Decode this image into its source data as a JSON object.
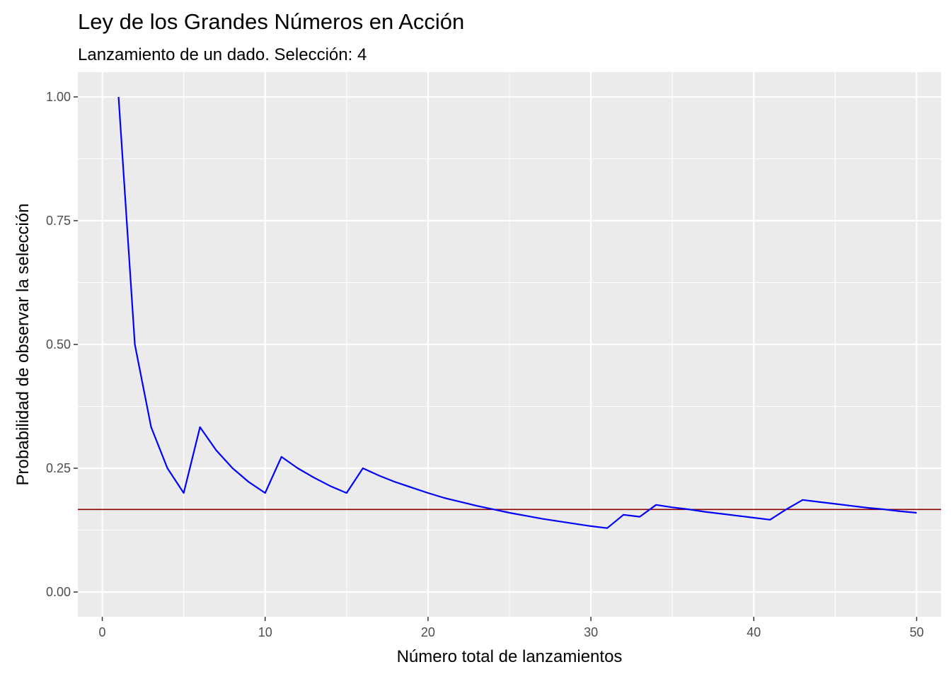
{
  "chart_data": {
    "type": "line",
    "title": "Ley de los Grandes Números en Acción",
    "subtitle": "Lanzamiento de un dado. Selección:  4",
    "xlabel": "Número total de lanzamientos",
    "ylabel": "Probabilidad de observar la selección",
    "xlim": [
      -1.5,
      51.5
    ],
    "ylim": [
      -0.05,
      1.05
    ],
    "x_ticks": [
      0,
      10,
      20,
      30,
      40,
      50
    ],
    "x_tick_labels": [
      "0",
      "10",
      "20",
      "30",
      "40",
      "50"
    ],
    "y_ticks": [
      0,
      0.25,
      0.5,
      0.75,
      1.0
    ],
    "y_tick_labels": [
      "0.00",
      "0.25",
      "0.50",
      "0.75",
      "1.00"
    ],
    "grid": true,
    "series": [
      {
        "color": "#0000ff",
        "x": [
          1,
          2,
          3,
          4,
          5,
          6,
          7,
          8,
          9,
          10,
          11,
          12,
          13,
          14,
          15,
          16,
          17,
          18,
          19,
          20,
          21,
          22,
          23,
          24,
          25,
          26,
          27,
          28,
          29,
          30,
          31,
          32,
          33,
          34,
          35,
          36,
          37,
          38,
          39,
          40,
          41,
          42,
          43,
          44,
          45,
          46,
          47,
          48,
          49,
          50
        ],
        "y": [
          1.0,
          0.5,
          0.333,
          0.25,
          0.2,
          0.333,
          0.286,
          0.25,
          0.222,
          0.2,
          0.273,
          0.25,
          0.231,
          0.214,
          0.2,
          0.25,
          0.235,
          0.222,
          0.211,
          0.2,
          0.19,
          0.182,
          0.174,
          0.167,
          0.16,
          0.154,
          0.148,
          0.143,
          0.138,
          0.133,
          0.129,
          0.156,
          0.152,
          0.176,
          0.171,
          0.167,
          0.162,
          0.158,
          0.154,
          0.15,
          0.146,
          0.167,
          0.186,
          0.182,
          0.178,
          0.174,
          0.17,
          0.167,
          0.163,
          0.16
        ]
      }
    ],
    "reference_line": {
      "y": 0.1667,
      "color": "#8b0000"
    }
  }
}
